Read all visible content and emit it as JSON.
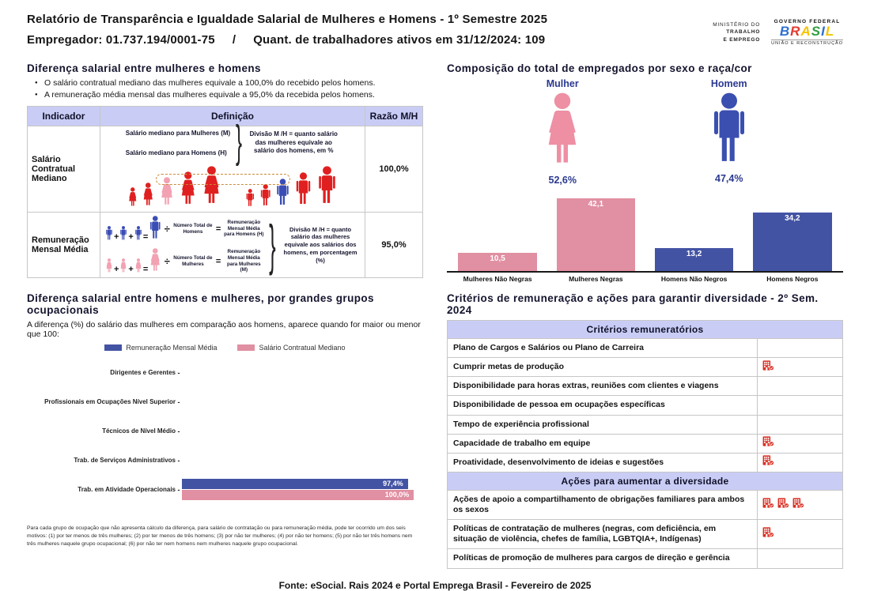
{
  "colors": {
    "navy": "#2b3990",
    "bar-blue": "#4353a4",
    "bar-pink": "#e18fa2",
    "fig-red": "#e02020",
    "fig-pink": "#f2a2b2",
    "fig-blue": "#3a4db5",
    "icon-pink": "#ee8fa4",
    "icon-blue": "#3b4fb0",
    "lavender": "#c9cdf5",
    "crit-red": "#d93025",
    "dashed-box": "#c98a3d",
    "table-border": "#c6c6c6"
  },
  "header": {
    "title_line1": "Relatório de Transparência e Igualdade Salarial de Mulheres e Homens - 1º Semestre 2025",
    "employer": "Empregador: 01.737.194/0001-75",
    "separator": "/",
    "active_workers": "Quant. de trabalhadores ativos em 31/12/2024: 109",
    "ministry_line1": "MINISTÉRIO DO",
    "ministry_line2": "TRABALHO",
    "ministry_line3": "E EMPREGO",
    "gov_top": "GOVERNO FEDERAL",
    "gov_brand": "BRASIL",
    "gov_bottom": "UNIÃO E RECONSTRUÇÃO",
    "gov_letter_colors": [
      "#2f6fd0",
      "#e23b30",
      "#f5c400",
      "#2f9e41",
      "#2f6fd0",
      "#f5c400"
    ]
  },
  "salary_gap": {
    "title": "Diferença salarial entre mulheres e homens",
    "bullets": [
      "O salário contratual mediano das mulheres equivale a 100,0% do recebido pelos homens.",
      "A remuneração média mensal das mulheres equivale a 95,0% da recebida pelos homens."
    ],
    "table_headers": [
      "Indicador",
      "Definição",
      "Razão M/H"
    ],
    "row1": {
      "indicator": "Salário Contratual Mediano",
      "def_line1": "Salário mediano para Mulheres (M)",
      "def_line2": "Salário mediano para Homens (H)",
      "note": "Divisão M /H = quanto salário das mulheres equivale ao salário dos homens, em %",
      "ratio": "100,0%"
    },
    "row2": {
      "indicator": "Remuneração Mensal Média",
      "plus": "+",
      "equals": "=",
      "divide": "÷",
      "men_divisor": "Número Total de Homens",
      "men_result": "Remuneração Mensal Média para Homens (H)",
      "women_divisor": "Número Total de Mulheres",
      "women_result": "Remuneração Mensal Média para Mulheres (M)",
      "note": "Divisão M /H = quanto salário das mulheres equivale aos salários dos homens, em porcentagem (%)",
      "ratio": "95,0%"
    }
  },
  "composition": {
    "title": "Composição do total de empregados por sexo e raça/cor",
    "female_label": "Mulher",
    "female_pct": "52,6%",
    "male_label": "Homem",
    "male_pct": "47,4%",
    "chart_data": {
      "type": "bar",
      "categories": [
        "Mulheres Não Negras",
        "Mulheres Negras",
        "Homens Não Negros",
        "Homens Negros"
      ],
      "values": [
        10.5,
        42.1,
        13.2,
        34.2
      ],
      "value_labels": [
        "10,5",
        "42,1",
        "13,2",
        "34,2"
      ],
      "bar_colors": [
        "#e18fa2",
        "#e18fa2",
        "#4353a4",
        "#4353a4"
      ],
      "ylim": [
        0,
        46
      ],
      "grid": false,
      "legend_position": "none"
    }
  },
  "occupational": {
    "title": "Diferença salarial entre homens e mulheres, por grandes grupos ocupacionais",
    "subtitle": "A diferença (%) do salário das mulheres em comparação aos homens, aparece quando for maior ou menor que 100:",
    "chart_data": {
      "type": "bar",
      "orientation": "horizontal",
      "categories": [
        "Dirigentes e Gerentes",
        "Profissionais em Ocupações Nível Superior",
        "Técnicos de Nível Médio",
        "Trab. de Serviços Administrativos",
        "Trab. em Atividade Operacionais"
      ],
      "series": [
        {
          "name": "Remuneração Mensal Média",
          "color": "#4353a4",
          "values": [
            null,
            null,
            null,
            null,
            97.4
          ],
          "labels": [
            "",
            "",
            "",
            "",
            "97,4%"
          ]
        },
        {
          "name": "Salário Contratual Mediano",
          "color": "#e18fa2",
          "values": [
            null,
            null,
            null,
            null,
            100.0
          ],
          "labels": [
            "",
            "",
            "",
            "",
            "100,0%"
          ]
        }
      ],
      "xlim": [
        0,
        104
      ],
      "grid": false,
      "legend_position": "top"
    },
    "footnote": "Para cada grupo de ocupação que não apresenta cálculo da diferença, para salário de contratação ou para remuneração média, pode ter ocorrido um dos seis motivos: (1) por ter menos de três mulheres; (2) por ter menos de três homens; (3) por não ter mulheres; (4) por não ter homens; (5) por não ter três homens nem três mulheres naquele grupo ocupacional; (6) por não ter nem homens nem mulheres naquele grupo ocupacional."
  },
  "criteria": {
    "title": "Critérios de remuneração e ações para garantir diversidade - 2º Sem. 2024",
    "sections": [
      {
        "header": "Critérios remuneratórios",
        "rows": [
          {
            "label": "Plano de Cargos e Salários ou Plano de Carreira",
            "icons": 0
          },
          {
            "label": "Cumprir metas de produção",
            "icons": 1
          },
          {
            "label": "Disponibilidade para horas extras, reuniões com clientes e viagens",
            "icons": 0
          },
          {
            "label": "Disponibilidade de pessoa em ocupações específicas",
            "icons": 0
          },
          {
            "label": "Tempo de experiência profissional",
            "icons": 0
          },
          {
            "label": "Capacidade de trabalho em equipe",
            "icons": 1
          },
          {
            "label": "Proatividade, desenvolvimento de ideias e sugestões",
            "icons": 1
          }
        ]
      },
      {
        "header": "Ações para aumentar a diversidade",
        "rows": [
          {
            "label": "Ações de apoio a compartilhamento de obrigações familiares para ambos os sexos",
            "icons": 3
          },
          {
            "label": "Políticas de contratação de mulheres (negras, com deficiência, em situação de violência, chefes de família, LGBTQIA+, Indígenas)",
            "icons": 1
          },
          {
            "label": "Políticas de promoção de mulheres para cargos de direção e gerência",
            "icons": 0
          }
        ]
      }
    ]
  },
  "footer": "Fonte: eSocial. Rais 2024 e Portal Emprega Brasil - Fevereiro de 2025"
}
